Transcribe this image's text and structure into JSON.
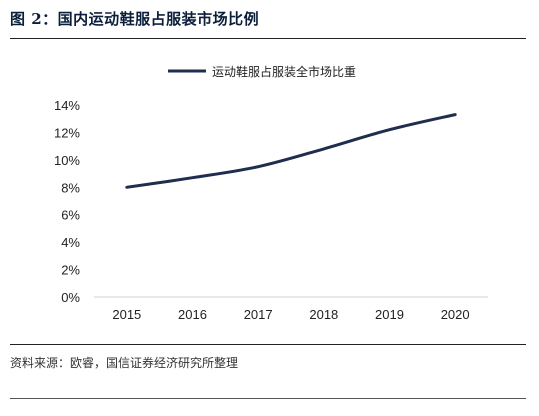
{
  "figure": {
    "title": "图 2：国内运动鞋服占服装市场比例",
    "source": "资料来源：欧睿，国信证券经济研究所整理"
  },
  "chart_data": {
    "type": "line",
    "categories": [
      "2015",
      "2016",
      "2017",
      "2018",
      "2019",
      "2020"
    ],
    "series": [
      {
        "name": "运动鞋服占服装全市场比重",
        "values": [
          8.0,
          8.7,
          9.5,
          10.8,
          12.2,
          13.3
        ],
        "color": "#1f2d4e"
      }
    ],
    "ylim": [
      0,
      14
    ],
    "yticks": [
      "0%",
      "2%",
      "4%",
      "6%",
      "8%",
      "10%",
      "12%",
      "14%"
    ],
    "ytick_values": [
      0,
      2,
      4,
      6,
      8,
      10,
      12,
      14
    ],
    "grid": false,
    "legend": "top-center"
  }
}
